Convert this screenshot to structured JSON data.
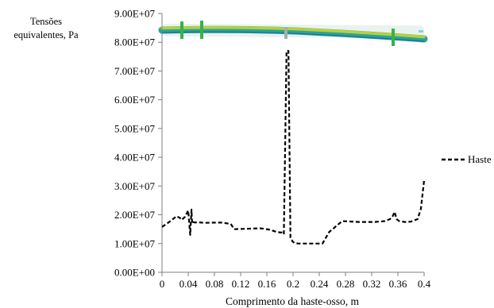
{
  "chart_data": {
    "type": "line",
    "ylabel_lines": [
      "Tensões",
      "equivalentes, Pa"
    ],
    "xlabel": "Comprimento da haste-osso, m",
    "xlim": [
      0,
      0.4
    ],
    "ylim": [
      0,
      90000000
    ],
    "x_ticks": [
      0,
      0.04,
      0.08,
      0.12,
      0.16,
      0.2,
      0.24,
      0.28,
      0.32,
      0.36,
      0.4
    ],
    "x_tick_labels": [
      "0",
      "0.04",
      "0.08",
      "0.12",
      "0.16",
      "0.2",
      "0.24",
      "0.28",
      "0.32",
      "0.36",
      "0.4"
    ],
    "y_ticks": [
      0,
      10000000,
      20000000,
      30000000,
      40000000,
      50000000,
      60000000,
      70000000,
      80000000,
      90000000
    ],
    "y_tick_labels": [
      "0.00E+00",
      "1.00E+07",
      "2.00E+07",
      "3.00E+07",
      "4.00E+07",
      "5.00E+07",
      "6.00E+07",
      "7.00E+07",
      "8.00E+07",
      "9.00E+07"
    ],
    "grid": false,
    "legend_position": "right",
    "series": [
      {
        "name": "Haste",
        "style": "dashed",
        "color": "#000000",
        "x": [
          0.0,
          0.008,
          0.015,
          0.022,
          0.027,
          0.03,
          0.035,
          0.04,
          0.043,
          0.045,
          0.046,
          0.047,
          0.05,
          0.055,
          0.065,
          0.09,
          0.105,
          0.11,
          0.125,
          0.15,
          0.165,
          0.175,
          0.183,
          0.186,
          0.19,
          0.193,
          0.196,
          0.199,
          0.202,
          0.208,
          0.225,
          0.245,
          0.255,
          0.275,
          0.3,
          0.325,
          0.34,
          0.348,
          0.352,
          0.355,
          0.358,
          0.362,
          0.37,
          0.38,
          0.39,
          0.395,
          0.4
        ],
        "y": [
          15800000,
          17000000,
          18200000,
          19500000,
          19000000,
          18200000,
          19300000,
          21500000,
          13000000,
          21800000,
          17000000,
          17500000,
          17300000,
          17400000,
          17200000,
          17300000,
          16800000,
          15000000,
          15100000,
          15300000,
          14800000,
          14000000,
          13800000,
          13200000,
          77000000,
          77000000,
          12000000,
          10800000,
          10200000,
          10000000,
          10000000,
          10000000,
          14000000,
          17800000,
          17500000,
          17500000,
          17800000,
          18500000,
          19500000,
          21000000,
          18500000,
          17800000,
          17500000,
          17600000,
          18500000,
          22000000,
          32000000
        ]
      }
    ]
  }
}
